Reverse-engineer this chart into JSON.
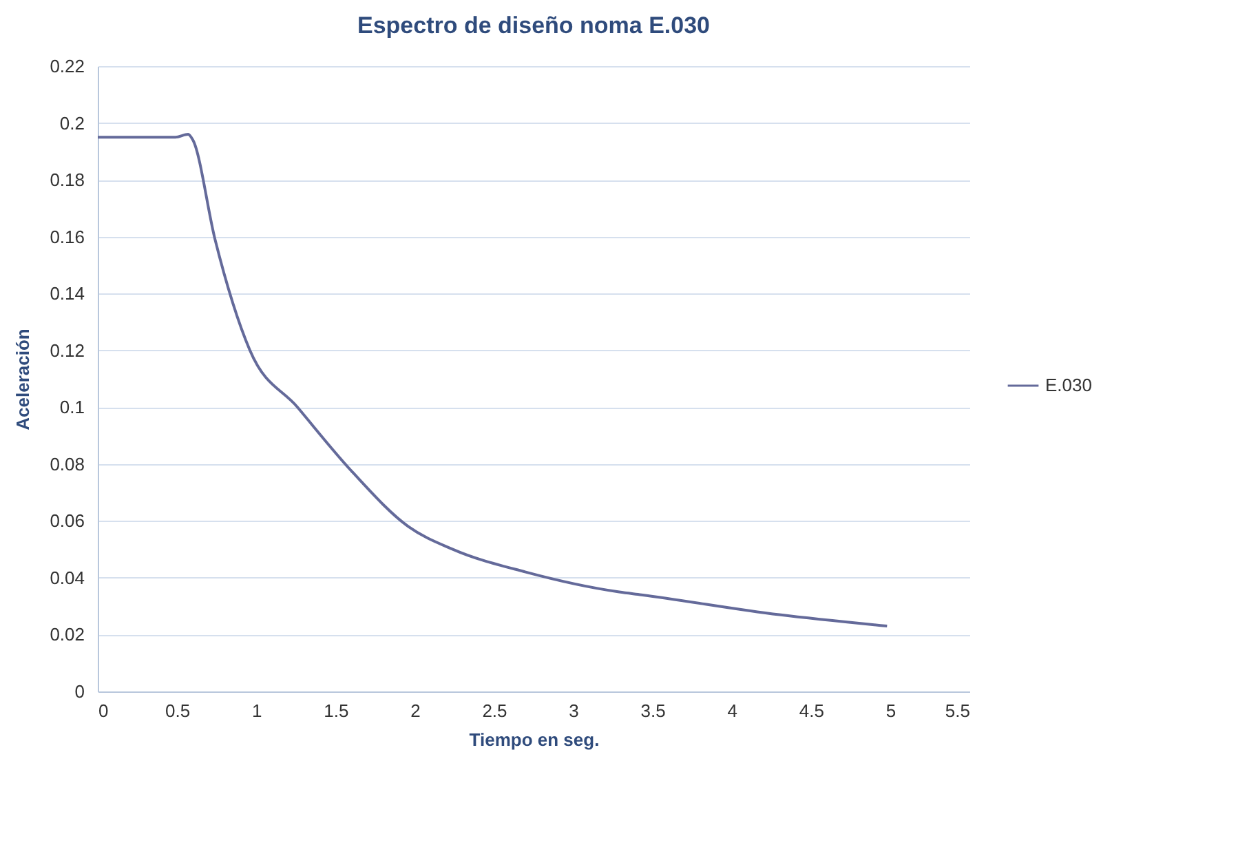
{
  "chart_data": {
    "type": "line",
    "title": "Espectro de diseño noma E.030",
    "xlabel": "Tiempo en seg.",
    "ylabel": "Aceleración",
    "x": [
      0,
      0.49,
      0.57,
      0.6,
      0.74,
      0.96,
      1.26,
      1.61,
      1.96,
      2.24,
      2.7,
      3.29,
      3.43,
      4.3,
      4.98
    ],
    "series": [
      {
        "name": "E.030",
        "color": "#646a9a",
        "values": [
          0.195,
          0.195,
          0.196,
          0.194,
          0.159,
          0.12,
          0.1,
          0.077,
          0.058,
          0.05,
          0.042,
          0.035,
          0.034,
          0.027,
          0.023
        ]
      }
    ],
    "xlim": [
      0,
      5.5
    ],
    "xticks": [
      0,
      0.5,
      1,
      1.5,
      2,
      2.5,
      3,
      3.5,
      4,
      4.5,
      5,
      5.5
    ],
    "ylim": [
      0,
      0.22
    ],
    "yticks": [
      0,
      0.02,
      0.04,
      0.06,
      0.08,
      0.1,
      0.12,
      0.14,
      0.16,
      0.18,
      0.2,
      0.22
    ],
    "grid": "y",
    "legend": "right",
    "marker": "none",
    "line_style": "solid"
  }
}
